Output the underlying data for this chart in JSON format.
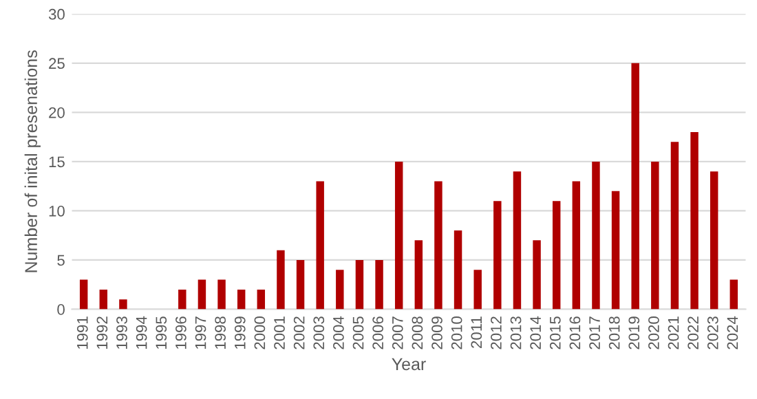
{
  "chart_data": {
    "type": "bar",
    "xlabel": "Year",
    "ylabel": "Number of inital presenations",
    "categories": [
      "1991",
      "1992",
      "1993",
      "1994",
      "1995",
      "1996",
      "1997",
      "1998",
      "1999",
      "2000",
      "2001",
      "2002",
      "2003",
      "2004",
      "2005",
      "2006",
      "2007",
      "2008",
      "2009",
      "2010",
      "2011",
      "2012",
      "2013",
      "2014",
      "2015",
      "2016",
      "2017",
      "2018",
      "2019",
      "2020",
      "2021",
      "2022",
      "2023",
      "2024"
    ],
    "values": [
      3,
      2,
      1,
      0,
      0,
      2,
      3,
      3,
      2,
      2,
      6,
      5,
      13,
      4,
      5,
      5,
      15,
      7,
      13,
      8,
      4,
      11,
      14,
      7,
      11,
      13,
      15,
      12,
      25,
      15,
      17,
      18,
      14,
      3
    ],
    "color": "#b00000",
    "ylim": [
      0,
      30
    ],
    "yticks": [
      0,
      5,
      10,
      15,
      20,
      25,
      30
    ],
    "grid": "y"
  }
}
